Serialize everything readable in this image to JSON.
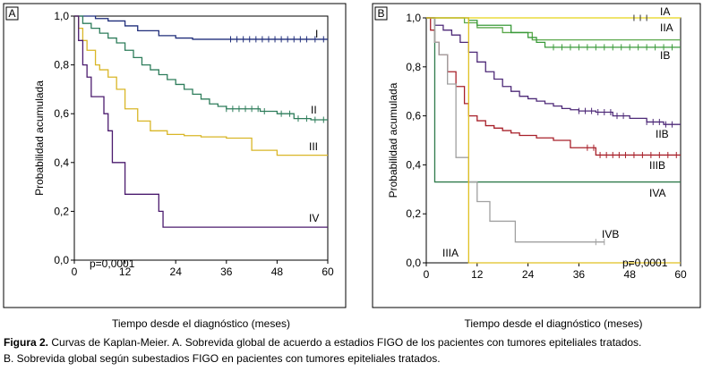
{
  "caption": {
    "label": "Figura 2.",
    "line1": " Curvas de Kaplan-Meier. A. Sobrevida global de acuerdo a estadios FIGO de los pacientes con tumores epiteliales tratados.",
    "line2": "B. Sobrevida global según subestadios FIGO en pacientes con tumores epiteliales tratados."
  },
  "chart_data": [
    {
      "type": "line",
      "panel_label": "A",
      "xlabel": "Tiempo desde el diagnóstico (meses)",
      "ylabel": "Probabilidad acumulada",
      "xlim": [
        0,
        60
      ],
      "ylim": [
        0,
        1
      ],
      "x_ticks": [
        0,
        12,
        24,
        36,
        48,
        60
      ],
      "y_ticks": [
        0,
        0.2,
        0.4,
        0.6,
        0.8,
        1.0
      ],
      "x_tick_labels": [
        "0",
        "12",
        "24",
        "36",
        "48",
        "60"
      ],
      "y_tick_labels": [
        "0,0",
        "0,2",
        "0,4",
        "0,6",
        "0,8",
        "1,0"
      ],
      "grid": false,
      "annotation": "p=0,0001",
      "series": [
        {
          "name": "I",
          "color": "#1f2d7a",
          "x": [
            0,
            4,
            5,
            8,
            12,
            15,
            20,
            24,
            28,
            60
          ],
          "y": [
            1.0,
            1.0,
            0.99,
            0.98,
            0.96,
            0.94,
            0.92,
            0.91,
            0.905,
            0.905
          ],
          "censor_x": [
            37,
            38.5,
            40,
            41.5,
            43,
            44.5,
            46,
            47.5,
            49,
            50.5,
            52,
            53.5,
            55,
            57,
            59
          ]
        },
        {
          "name": "II",
          "color": "#2e7d5b",
          "x": [
            0,
            2,
            4,
            6,
            8,
            10,
            12,
            14,
            16,
            18,
            20,
            22,
            24,
            26,
            28,
            30,
            32,
            34,
            36,
            40,
            44,
            48,
            52,
            56,
            60
          ],
          "y": [
            1.0,
            0.97,
            0.95,
            0.93,
            0.91,
            0.89,
            0.86,
            0.83,
            0.8,
            0.78,
            0.76,
            0.74,
            0.72,
            0.7,
            0.68,
            0.66,
            0.64,
            0.63,
            0.62,
            0.62,
            0.61,
            0.6,
            0.58,
            0.575,
            0.575
          ],
          "censor_x": [
            36,
            37.5,
            39,
            40.5,
            42,
            43.5,
            45,
            49,
            51,
            53,
            55,
            57,
            59
          ]
        },
        {
          "name": "III",
          "color": "#d9b627",
          "x": [
            0,
            1,
            2,
            3,
            5,
            6,
            8,
            10,
            12,
            15,
            18,
            22,
            26,
            30,
            36,
            42,
            48,
            60
          ],
          "y": [
            1.0,
            0.95,
            0.9,
            0.86,
            0.8,
            0.78,
            0.75,
            0.7,
            0.62,
            0.57,
            0.53,
            0.515,
            0.51,
            0.505,
            0.5,
            0.45,
            0.43,
            0.43
          ],
          "censor_x": []
        },
        {
          "name": "IV",
          "color": "#4b1b6e",
          "x": [
            0,
            1,
            2,
            3,
            4,
            7,
            8,
            9,
            12,
            20,
            21,
            60
          ],
          "y": [
            1.0,
            0.9,
            0.8,
            0.75,
            0.67,
            0.6,
            0.53,
            0.4,
            0.27,
            0.2,
            0.135,
            0.135
          ],
          "censor_x": []
        }
      ]
    },
    {
      "type": "line",
      "panel_label": "B",
      "xlabel": "Tiempo desde el diagnóstico (meses)",
      "ylabel": "Probabilidad acumulada",
      "xlim": [
        0,
        60
      ],
      "ylim": [
        0,
        1
      ],
      "x_ticks": [
        0,
        12,
        24,
        36,
        48,
        60
      ],
      "y_ticks": [
        0,
        0.2,
        0.4,
        0.6,
        0.8,
        1.0
      ],
      "x_tick_labels": [
        "0",
        "12",
        "24",
        "36",
        "48",
        "60"
      ],
      "y_tick_labels": [
        "0,0",
        "0,2",
        "0,4",
        "0,6",
        "0,8",
        "1,0"
      ],
      "grid": false,
      "annotation": "p=0,0001",
      "series": [
        {
          "name": "IA",
          "color": "#e5d417",
          "x": [
            0,
            60
          ],
          "y": [
            1.0,
            1.0
          ],
          "censor_x": [
            49,
            50.5,
            52
          ]
        },
        {
          "name": "IIA",
          "color": "#5aa84a",
          "x": [
            0,
            9,
            12,
            18,
            25,
            60
          ],
          "y": [
            1.0,
            0.98,
            0.96,
            0.94,
            0.91,
            0.91
          ],
          "censor_x": []
        },
        {
          "name": "IB",
          "color": "#3a9a3a",
          "x": [
            0,
            10,
            12,
            20,
            24,
            26,
            28,
            60
          ],
          "y": [
            1.0,
            0.99,
            0.97,
            0.94,
            0.92,
            0.9,
            0.88,
            0.88
          ],
          "censor_x": [
            30,
            32,
            34,
            36,
            38,
            40,
            42,
            44,
            46,
            48,
            50,
            52,
            54,
            56,
            58
          ]
        },
        {
          "name": "IIB",
          "color": "#4e2a78",
          "x": [
            0,
            2,
            4,
            6,
            8,
            10,
            12,
            14,
            16,
            18,
            20,
            22,
            24,
            26,
            28,
            30,
            32,
            34,
            36,
            40,
            44,
            48,
            52,
            56,
            60
          ],
          "y": [
            1.0,
            0.97,
            0.95,
            0.93,
            0.9,
            0.86,
            0.82,
            0.78,
            0.75,
            0.72,
            0.7,
            0.68,
            0.67,
            0.66,
            0.65,
            0.64,
            0.63,
            0.625,
            0.62,
            0.615,
            0.6,
            0.59,
            0.575,
            0.565,
            0.565
          ],
          "censor_x": [
            36,
            37.5,
            39,
            40.5,
            42,
            43.5,
            45,
            46.5,
            52,
            53.5,
            55,
            56.5,
            58
          ]
        },
        {
          "name": "IIIB",
          "color": "#a8202a",
          "x": [
            0,
            1,
            2,
            3,
            5,
            7,
            9,
            10,
            12,
            14,
            16,
            18,
            20,
            22,
            26,
            30,
            34,
            40,
            60
          ],
          "y": [
            1.0,
            0.95,
            0.9,
            0.85,
            0.78,
            0.72,
            0.65,
            0.6,
            0.58,
            0.56,
            0.55,
            0.54,
            0.53,
            0.52,
            0.51,
            0.5,
            0.47,
            0.44,
            0.44
          ],
          "censor_x": [
            38,
            39.5,
            41,
            42.5,
            44,
            45.5,
            47,
            49,
            51,
            53,
            55,
            57,
            59
          ]
        },
        {
          "name": "IVA",
          "color": "#2e7a4a",
          "x": [
            0,
            2,
            60
          ],
          "y": [
            1.0,
            0.33,
            0.33
          ],
          "censor_x": []
        },
        {
          "name": "IVB",
          "color": "#a0a0a0",
          "x": [
            0,
            2,
            3,
            5,
            7,
            10,
            12,
            15,
            21,
            42
          ],
          "y": [
            1.0,
            0.9,
            0.85,
            0.73,
            0.43,
            0.33,
            0.25,
            0.17,
            0.085,
            0.085
          ],
          "censor_x": [
            40,
            42
          ]
        },
        {
          "name": "IIIA",
          "color": "#e0c020",
          "x": [
            0,
            9,
            10,
            60
          ],
          "y": [
            1.0,
            1.0,
            0.0,
            0.0
          ],
          "x_end": 10,
          "censor_x": []
        }
      ]
    }
  ]
}
